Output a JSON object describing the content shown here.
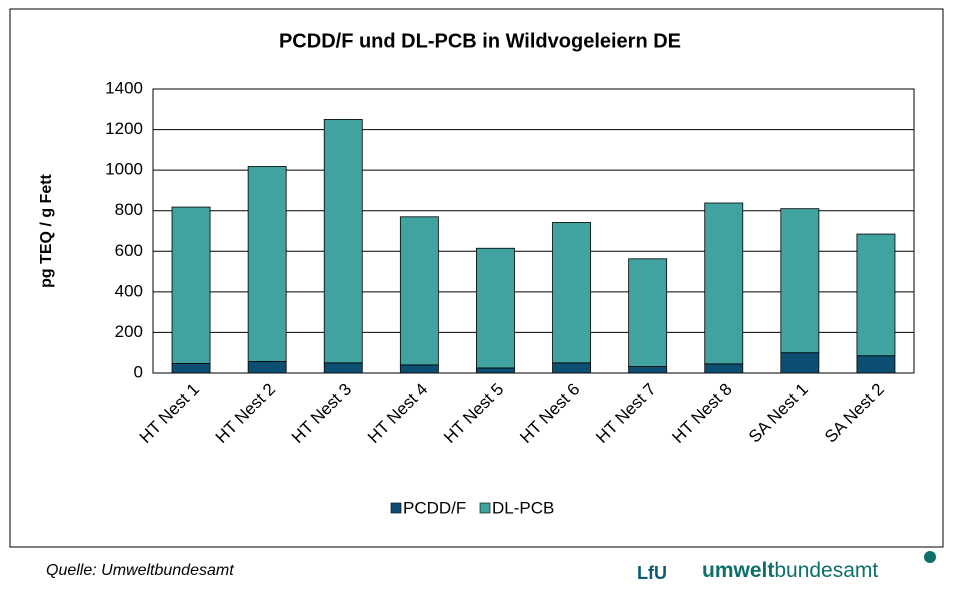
{
  "chart_data": {
    "type": "stacked_bar",
    "title": "PCDD/F und DL-PCB in Wildvogeleiern DE",
    "y_label": "pg TEQ / g Fett",
    "categories": [
      "HT Nest 1",
      "HT Nest 2",
      "HT Nest 3",
      "HT Nest 4",
      "HT Nest 5",
      "HT Nest 6",
      "HT Nest 7",
      "HT Nest 8",
      "SA Nest 1",
      "SA Nest 2"
    ],
    "series": [
      {
        "name": "PCDD/F",
        "color": "#0d4f72",
        "values": [
          47,
          57,
          50,
          40,
          25,
          50,
          32,
          45,
          100,
          85
        ]
      },
      {
        "name": "DL-PCB",
        "color": "#40a3a0",
        "values": [
          771,
          961,
          1200,
          730,
          590,
          692,
          531,
          793,
          710,
          600
        ]
      }
    ],
    "ylim": [
      0,
      1400
    ],
    "yticks": [
      0,
      200,
      400,
      600,
      800,
      1000,
      1200,
      1400
    ],
    "grid": true,
    "legend": "bottom"
  },
  "footer": {
    "source": "Quelle: Umweltbundesamt",
    "logo_lfu": "LfU",
    "logo_uba_bold": "umwelt",
    "logo_uba_light": "bundesamt"
  }
}
